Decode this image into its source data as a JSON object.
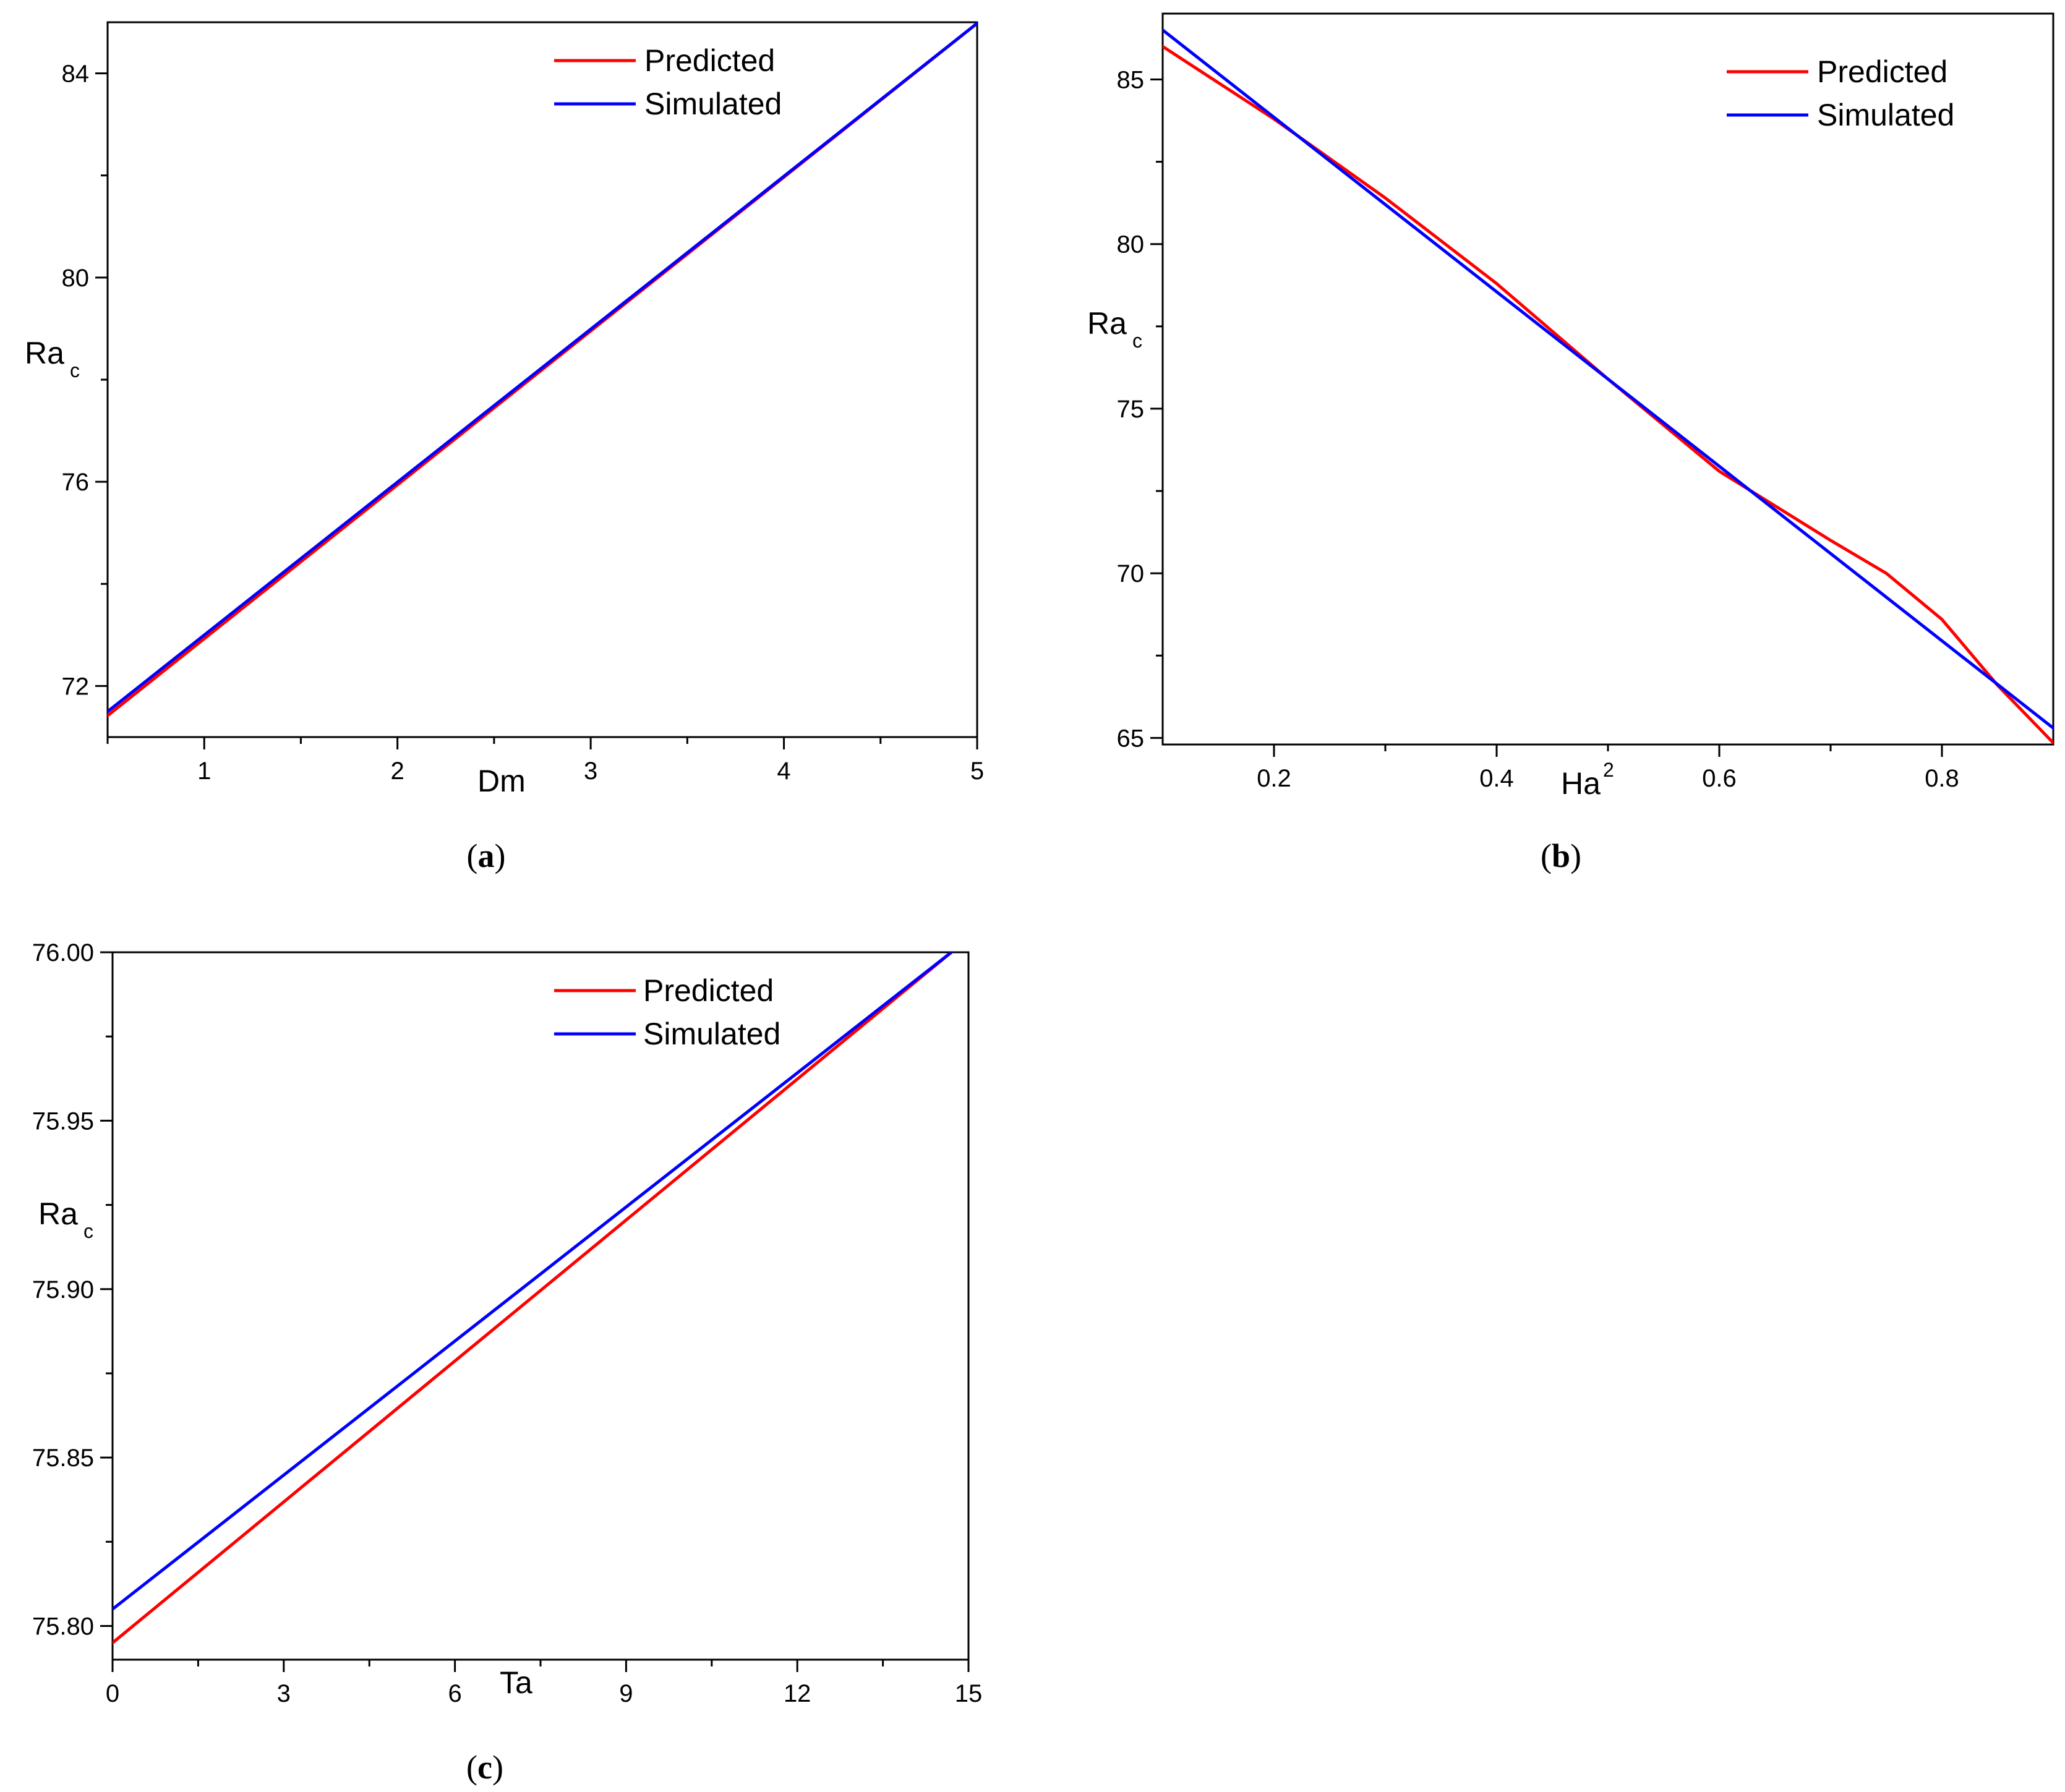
{
  "chart_data": [
    {
      "id": "a",
      "type": "line",
      "caption_letter": "a",
      "xlabel": "Dm",
      "ylabel": "Ra",
      "ylabel_sub": "c",
      "xlim": [
        0.5,
        5
      ],
      "ylim": [
        71,
        85
      ],
      "x_major_ticks": [
        1,
        2,
        3,
        4,
        5
      ],
      "x_tick_labels": [
        "1",
        "2",
        "3",
        "4",
        "5"
      ],
      "x_minor_ticks": [
        0.5,
        1.5,
        2.5,
        3.5,
        4.5
      ],
      "y_major_ticks": [
        72,
        76,
        80,
        84
      ],
      "y_tick_labels": [
        "72",
        "76",
        "80",
        "84"
      ],
      "y_minor_ticks": [
        74,
        78,
        82
      ],
      "legend": [
        "Predicted",
        "Simulated"
      ],
      "series": [
        {
          "name": "Predicted",
          "color": "#ff0000",
          "x": [
            0.5,
            5
          ],
          "y": [
            71.42,
            84.98
          ]
        },
        {
          "name": "Simulated",
          "color": "#0000ff",
          "x": [
            0.5,
            5
          ],
          "y": [
            71.5,
            84.98
          ]
        }
      ]
    },
    {
      "id": "b",
      "type": "line",
      "caption_letter": "b",
      "xlabel": "Ha",
      "xlabel_sup": "2",
      "ylabel": "Ra",
      "ylabel_sub": "c",
      "xlim": [
        0.1,
        0.9
      ],
      "ylim": [
        64.8,
        87
      ],
      "x_major_ticks": [
        0.2,
        0.4,
        0.6,
        0.8
      ],
      "x_tick_labels": [
        "0.2",
        "0.4",
        "0.6",
        "0.8"
      ],
      "x_minor_ticks": [
        0.3,
        0.5,
        0.7
      ],
      "y_major_ticks": [
        65,
        70,
        75,
        80,
        85
      ],
      "y_tick_labels": [
        "65",
        "70",
        "75",
        "80",
        "85"
      ],
      "y_minor_ticks": [
        67.5,
        72.5,
        77.5,
        82.5
      ],
      "legend": [
        "Predicted",
        "Simulated"
      ],
      "series": [
        {
          "name": "Predicted",
          "color": "#ff0000",
          "x": [
            0.1,
            0.2,
            0.3,
            0.4,
            0.5,
            0.6,
            0.7,
            0.75,
            0.8,
            0.85,
            0.9
          ],
          "y": [
            86.0,
            83.8,
            81.4,
            78.8,
            75.9,
            73.1,
            71.0,
            70.0,
            68.6,
            66.6,
            64.85
          ]
        },
        {
          "name": "Simulated",
          "color": "#0000ff",
          "x": [
            0.1,
            0.9
          ],
          "y": [
            86.5,
            65.3
          ]
        }
      ]
    },
    {
      "id": "c",
      "type": "line",
      "caption_letter": "c",
      "xlabel": "Ta",
      "ylabel": "Ra",
      "ylabel_sub": "c",
      "xlim": [
        0,
        15
      ],
      "ylim": [
        75.79,
        76.0
      ],
      "x_major_ticks": [
        0,
        3,
        6,
        9,
        12,
        15
      ],
      "x_tick_labels": [
        "0",
        "3",
        "6",
        "9",
        "12",
        "15"
      ],
      "x_minor_ticks": [
        1.5,
        4.5,
        7.5,
        10.5,
        13.5
      ],
      "y_major_ticks": [
        75.8,
        75.85,
        75.9,
        75.95,
        76.0
      ],
      "y_tick_labels": [
        "75.80",
        "75.85",
        "75.90",
        "75.95",
        "76.00"
      ],
      "y_minor_ticks": [
        75.825,
        75.875,
        75.925,
        75.975
      ],
      "legend": [
        "Predicted",
        "Simulated"
      ],
      "series": [
        {
          "name": "Predicted",
          "color": "#ff0000",
          "x": [
            0,
            14.7
          ],
          "y": [
            75.795,
            76.0
          ]
        },
        {
          "name": "Simulated",
          "color": "#0000ff",
          "x": [
            0,
            14.7
          ],
          "y": [
            75.805,
            76.0
          ]
        }
      ]
    }
  ]
}
